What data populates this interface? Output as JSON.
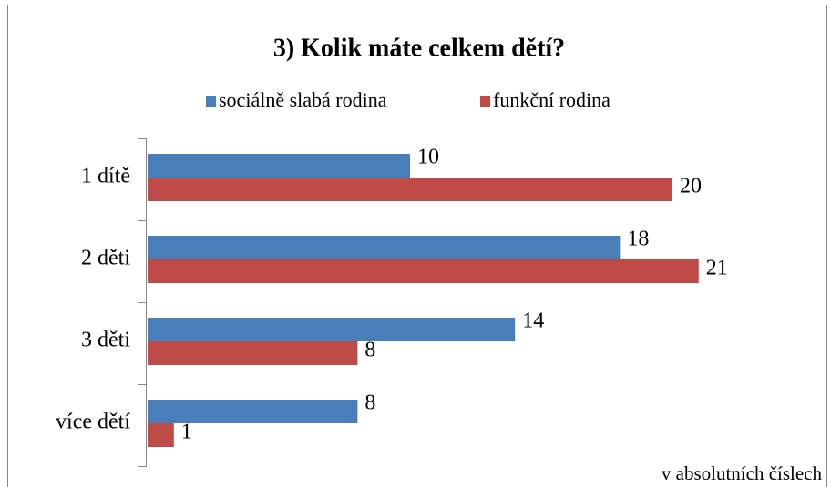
{
  "chart_data": {
    "type": "bar",
    "orientation": "horizontal",
    "title": "3) Kolik máte celkem dětí?",
    "categories": [
      "1 dítě",
      "2 děti",
      "3 děti",
      "více dětí"
    ],
    "series": [
      {
        "name": "sociálně slabá rodina",
        "color": "#4a7ebb",
        "values": [
          10,
          18,
          14,
          8
        ]
      },
      {
        "name": "funkční rodina",
        "color": "#be4b48",
        "values": [
          20,
          21,
          8,
          1
        ]
      }
    ],
    "xlim": [
      0,
      25
    ],
    "legend": "top",
    "note": "v absolutních číslech"
  }
}
